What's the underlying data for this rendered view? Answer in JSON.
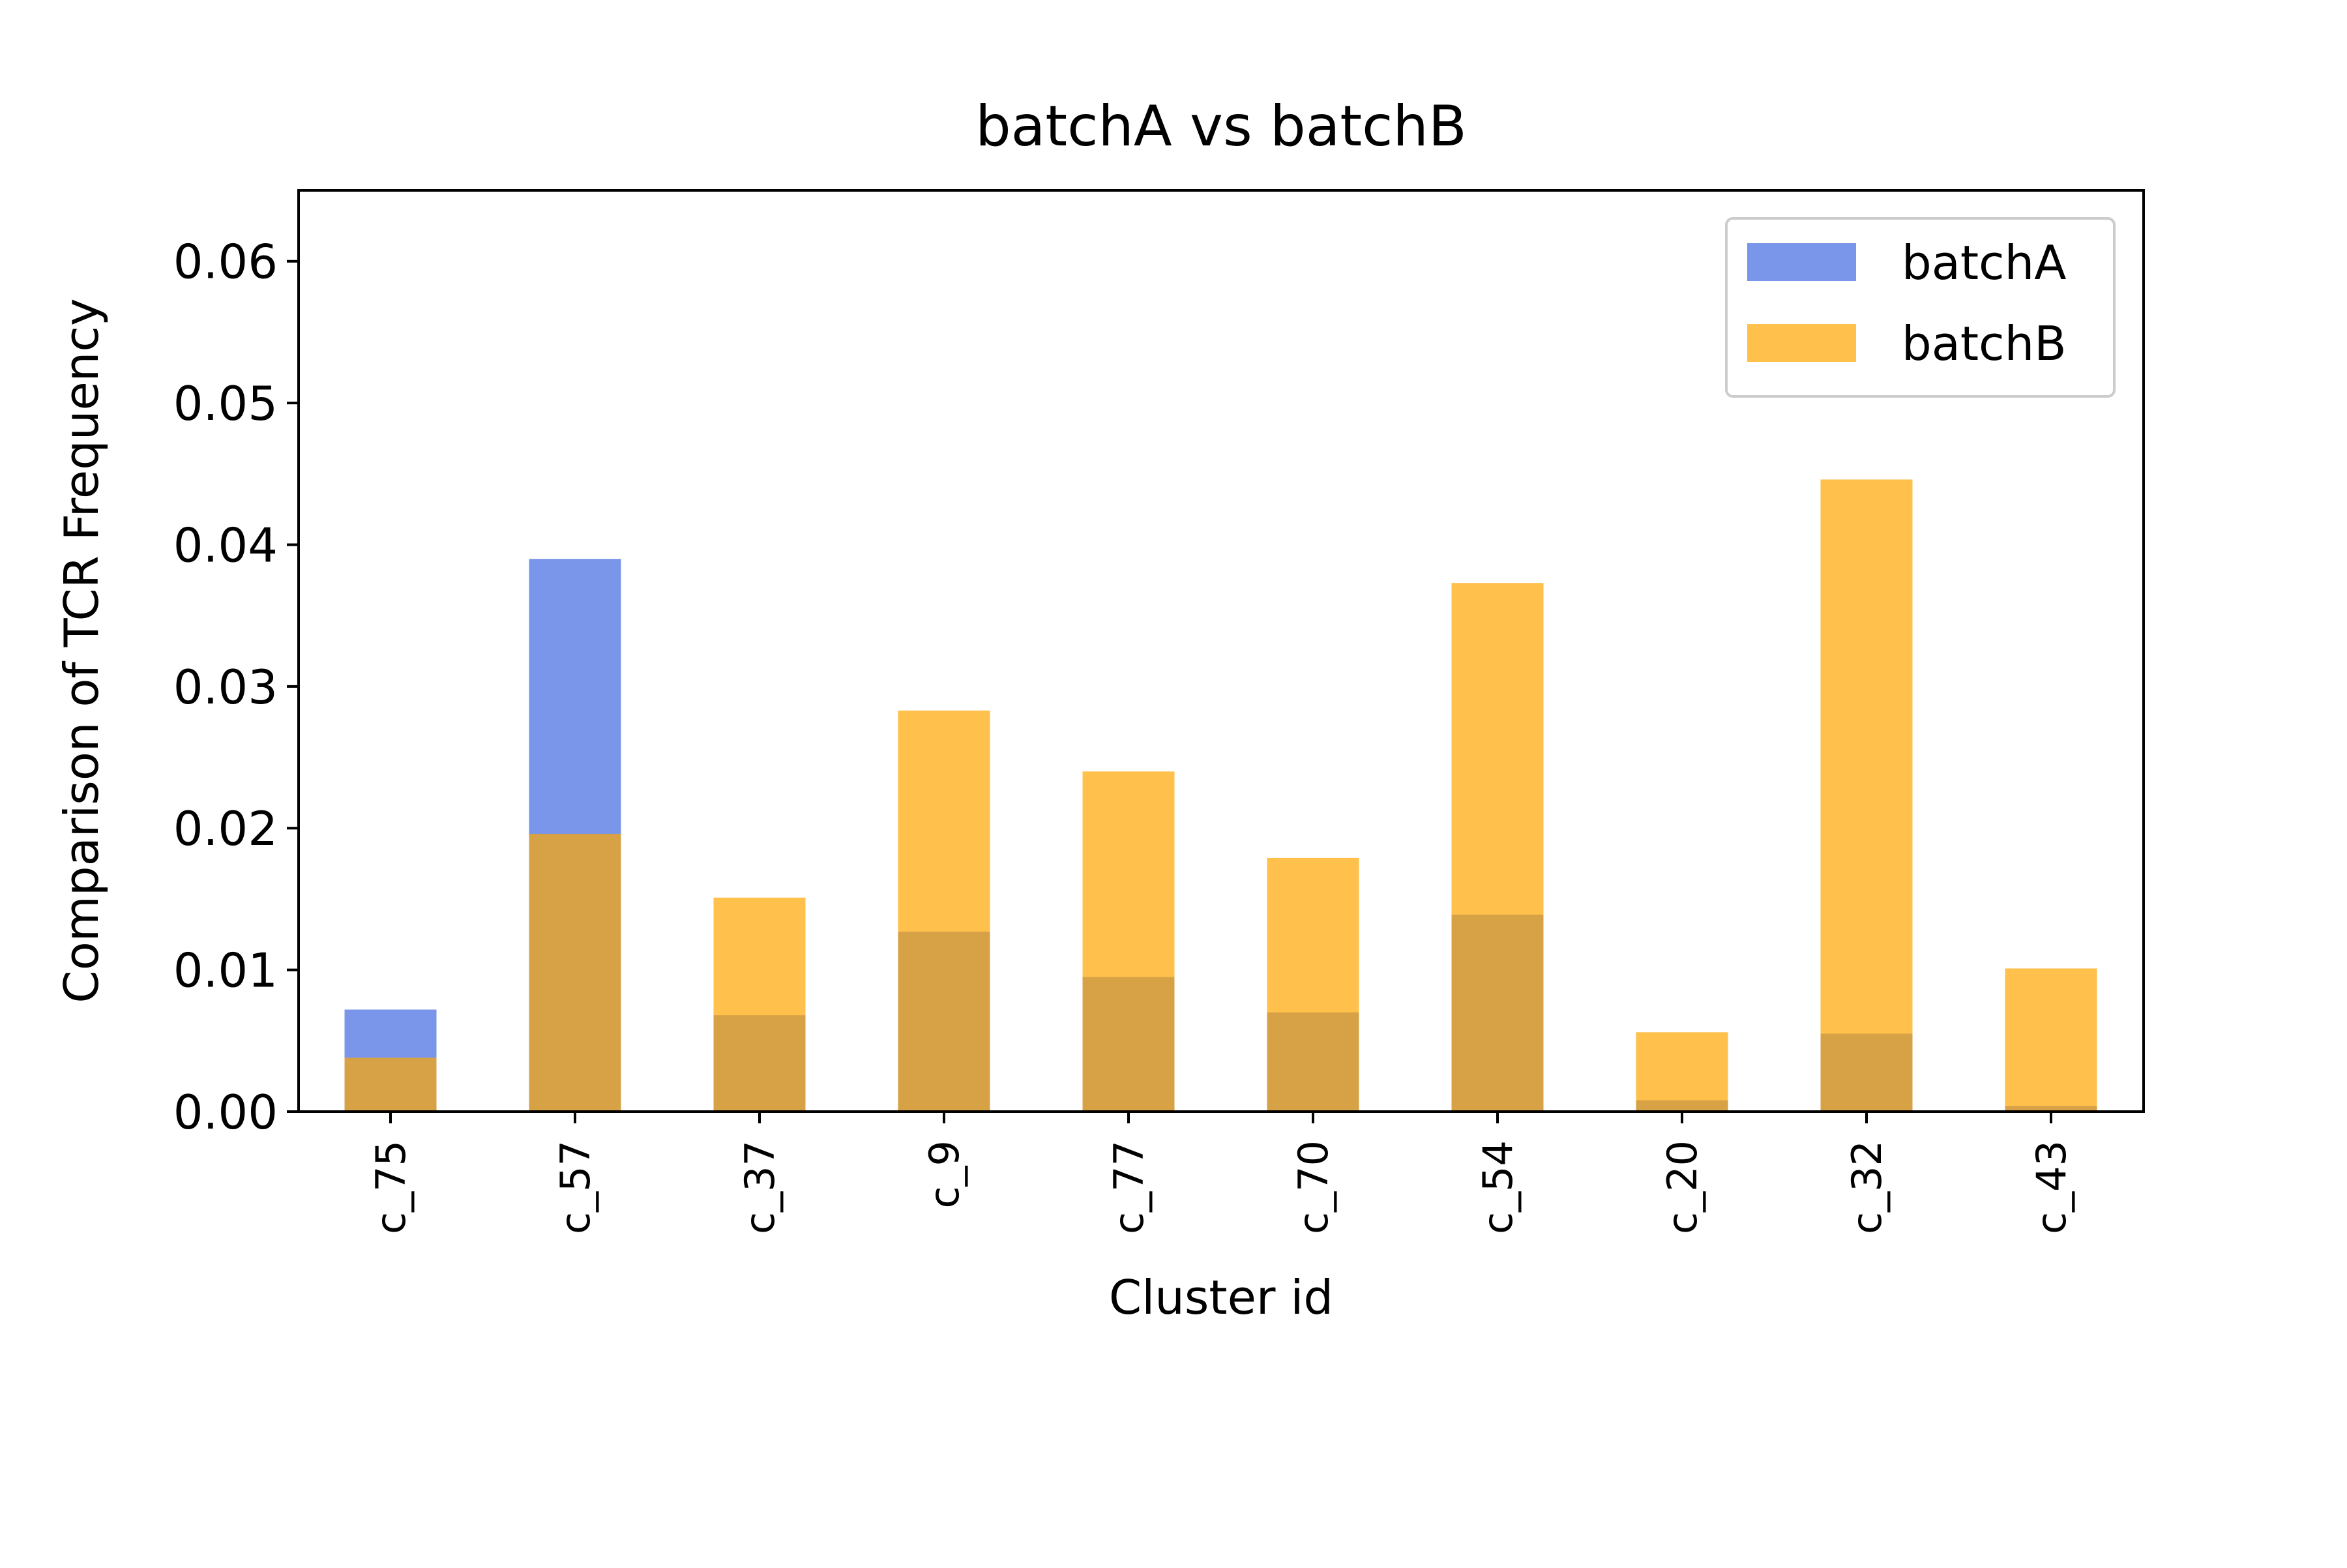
{
  "chart_data": {
    "type": "bar",
    "title": "batchA vs batchB",
    "xlabel": "Cluster id",
    "ylabel": "Comparison of TCR Frequency",
    "categories": [
      "c_75",
      "c_57",
      "c_37",
      "c_9",
      "c_77",
      "c_70",
      "c_54",
      "c_20",
      "c_32",
      "c_43"
    ],
    "series": [
      {
        "name": "batchA",
        "color": "#4169e1",
        "values": [
          0.0072,
          0.039,
          0.0068,
          0.0127,
          0.0095,
          0.007,
          0.0139,
          0.0008,
          0.0055,
          0.0004
        ]
      },
      {
        "name": "batchB",
        "color": "#ffa500",
        "values": [
          0.0038,
          0.0196,
          0.0151,
          0.0283,
          0.024,
          0.0179,
          0.0373,
          0.0056,
          0.0446,
          0.0101
        ]
      }
    ],
    "ylim": [
      0,
      0.065
    ],
    "yticks": [
      0.0,
      0.01,
      0.02,
      0.03,
      0.04,
      0.05,
      0.06
    ],
    "ytick_labels": [
      "0.00",
      "0.01",
      "0.02",
      "0.03",
      "0.04",
      "0.05",
      "0.06"
    ],
    "grid": false,
    "legend_position": "top-right",
    "bars_overlaid": true,
    "bar_opacity": 0.7
  }
}
